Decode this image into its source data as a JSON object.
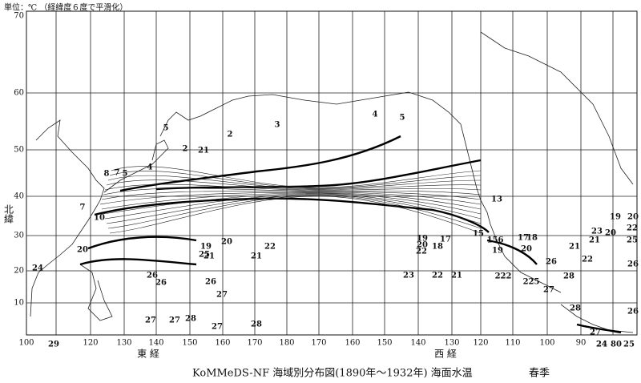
{
  "header": {
    "unit": "単位：℃ （経緯度６度で平滑化）"
  },
  "axes": {
    "longitude_ticks": [
      100,
      120,
      130,
      140,
      150,
      160,
      170,
      180,
      170,
      160,
      150,
      140,
      130,
      120,
      110,
      100,
      90
    ],
    "latitude_ticks": [
      70,
      60,
      50,
      40,
      30,
      20,
      10
    ],
    "east": "東 経",
    "west": "西 経",
    "north": "北緯"
  },
  "isotherm_labels": [
    "2",
    "3",
    "4",
    "5",
    "5",
    "2",
    "21",
    "4",
    "8",
    "7",
    "5",
    "13",
    "7",
    "10",
    "15",
    "19",
    "20",
    "22",
    "19",
    "20",
    "17",
    "18",
    "22",
    "21",
    "21",
    "25",
    "23",
    "22",
    "21",
    "26",
    "26",
    "26",
    "27",
    "27",
    "27",
    "28",
    "27",
    "28",
    "24",
    "20",
    "156",
    "17",
    "18",
    "19",
    "20",
    "222",
    "225",
    "26",
    "21",
    "28",
    "27",
    "23",
    "20",
    "19",
    "20",
    "22",
    "21",
    "25",
    "22",
    "26",
    "28",
    "26",
    "27",
    "24",
    "29",
    "24",
    "80",
    "25"
  ],
  "caption": {
    "title": "KoMMeDS-NF 海域別分布図(1890年～1932年) 海面水温",
    "season": "春季"
  }
}
